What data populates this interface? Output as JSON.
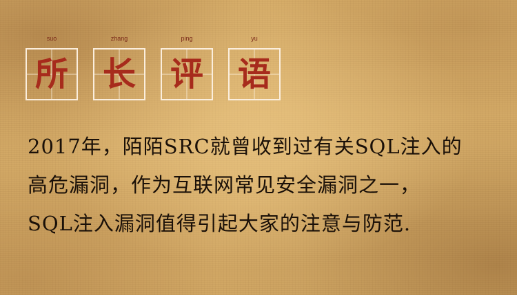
{
  "title": {
    "chars": [
      {
        "pinyin": "suo",
        "glyph": "所"
      },
      {
        "pinyin": "zhang",
        "glyph": "长"
      },
      {
        "pinyin": "ping",
        "glyph": "评"
      },
      {
        "pinyin": "yu",
        "glyph": "语"
      }
    ]
  },
  "body": {
    "lines": [
      "2017年，陌陌SRC就曾收到过有关SQL注入的",
      "高危漏洞，作为互联网常见安全漏洞之一，",
      "SQL注入漏洞值得引起大家的注意与防范."
    ]
  },
  "colors": {
    "title_red": "#a72b1c",
    "box_border": "#fbeedd",
    "text": "#1a1008",
    "background": "#d9b06b"
  }
}
